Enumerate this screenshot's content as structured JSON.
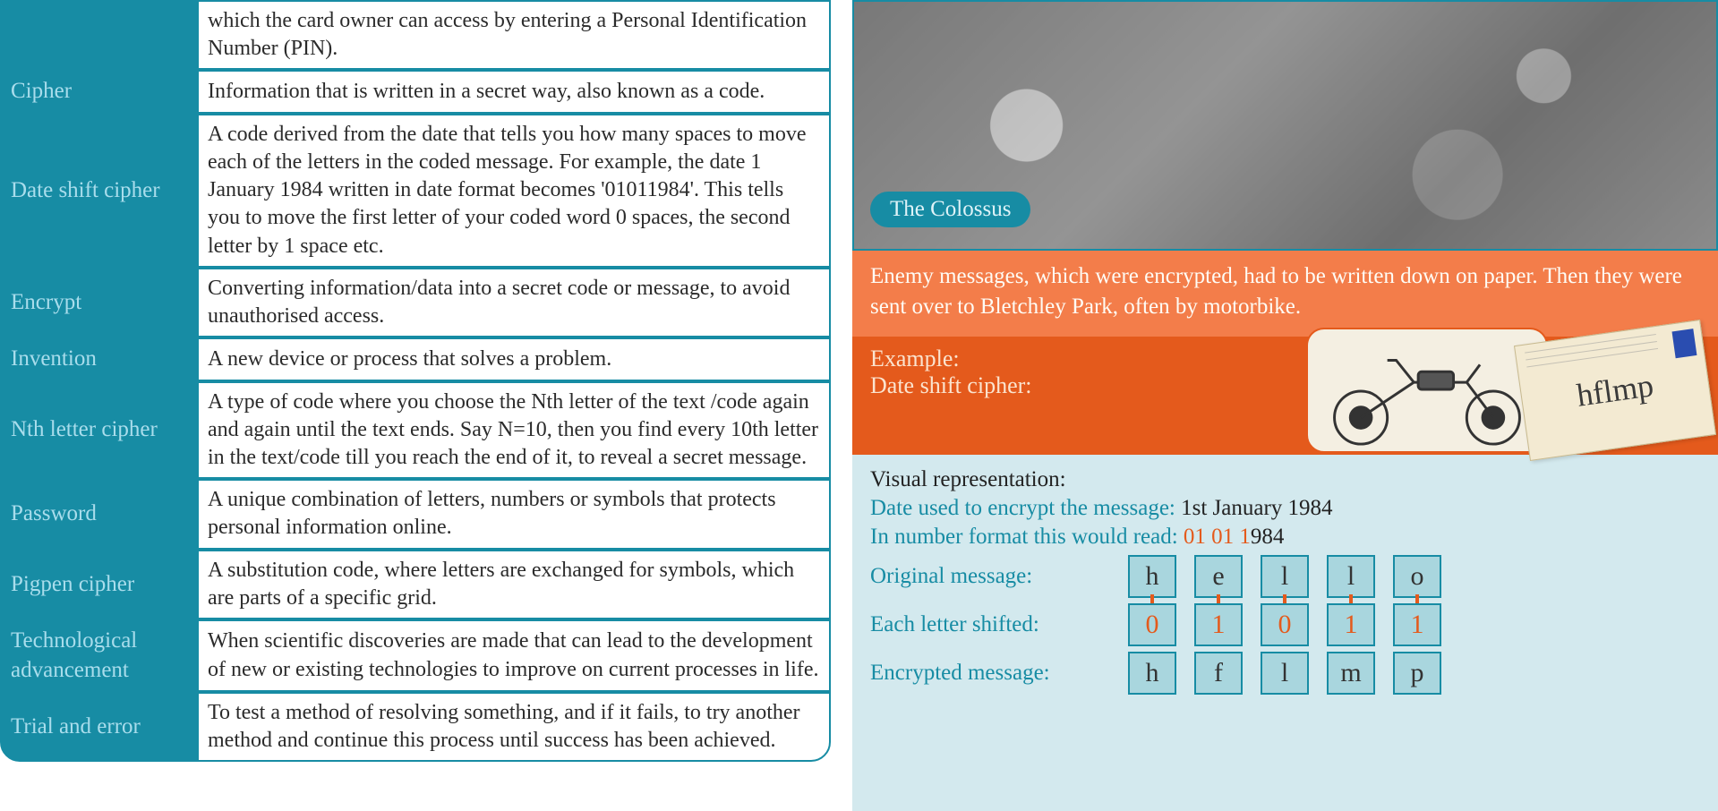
{
  "colors": {
    "teal": "#178ca4",
    "teal_light": "#a9ddec",
    "orange_light": "#f37d4a",
    "orange_dark": "#e45a1c",
    "panel_blue": "#d3e9ee",
    "cell_fill": "#a9d6de",
    "white": "#ffffff",
    "text": "#2b2b2b"
  },
  "glossary": {
    "rows": [
      {
        "term": "",
        "def": "which the card owner can access by entering a Personal Identification Number (PIN)."
      },
      {
        "term": "Cipher",
        "def": "Information that is written in a secret way, also known as a code."
      },
      {
        "term": "Date shift cipher",
        "def": "A code derived from the date that tells you how many spaces to move each of the letters in the coded message. For example, the date 1 January 1984 written in date format becomes '01011984'. This tells you to move the first letter of your coded word 0 spaces, the second letter by 1 space etc."
      },
      {
        "term": "Encrypt",
        "def": "Converting information/data into a secret code or message, to avoid unauthorised access."
      },
      {
        "term": "Invention",
        "def": "A new device or process that solves a problem."
      },
      {
        "term": "Nth letter cipher",
        "def": "A type of code where you choose the Nth letter of the text /code again and again until the text ends. Say N=10, then you find every 10th letter in the text/code till you reach the end of it, to reveal a secret message."
      },
      {
        "term": "Password",
        "def": "A unique combination of letters, numbers or symbols that protects personal information online."
      },
      {
        "term": "Pigpen cipher",
        "def": "A substitution code, where letters are exchanged for symbols, which are parts of a specific grid."
      },
      {
        "term": "Technological advancement",
        "def": "When scientific discoveries are made that can lead to the development of new or existing technologies to improve on current processes in life."
      },
      {
        "term": "Trial and error",
        "def": "To test a method of resolving something, and if it fails, to try another method and continue this process until success has been achieved."
      }
    ]
  },
  "photo": {
    "label": "The Colossus"
  },
  "orange_text": "Enemy messages, which were encrypted, had to be written down on paper. Then they were sent over to Bletchley Park, often by motorbike.",
  "example": {
    "title1": "Example:",
    "title2": "Date shift cipher:",
    "letter_text": "hflmp"
  },
  "visual": {
    "heading": "Visual representation:",
    "line1_label": "Date used to encrypt the message:",
    "line1_value": "1st January 1984",
    "line2_label": "In number format this would read:",
    "line2_value_colored": "01 01 1",
    "line2_value_rest": "984",
    "rows": {
      "original_label": "Original message:",
      "original_cells": [
        "h",
        "e",
        "l",
        "l",
        "o"
      ],
      "shift_label": "Each letter shifted:",
      "shift_cells": [
        "0",
        "1",
        "0",
        "1",
        "1"
      ],
      "encrypted_label": "Encrypted message:",
      "encrypted_cells": [
        "h",
        "f",
        "l",
        "m",
        "p"
      ]
    }
  }
}
